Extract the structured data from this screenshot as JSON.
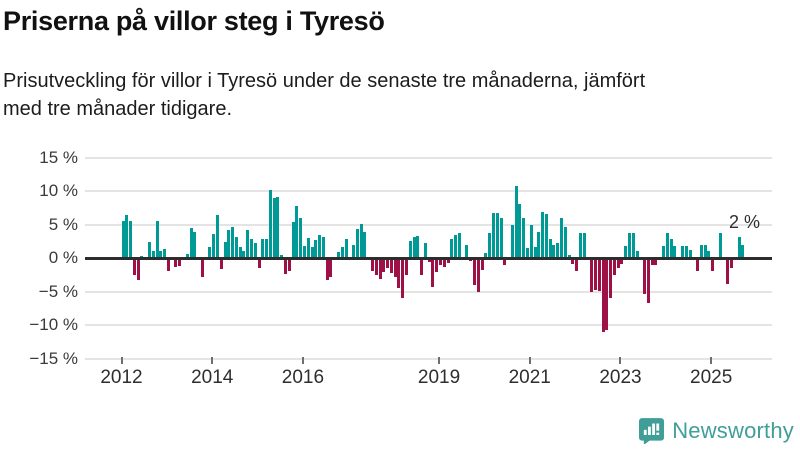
{
  "header": {
    "title": "Priserna på villor steg i Tyresö",
    "subtitle": "Prisutveckling för villor i Tyresö under de senaste tre månaderna, jämfört\nmed tre månader tidigare."
  },
  "chart_data": {
    "type": "bar",
    "unit": "%",
    "frequency": "monthly",
    "x_start": "2012-01",
    "x_end": "2025-09",
    "ylim": [
      -15,
      15
    ],
    "grid": true,
    "legend": false,
    "y_tick_values": [
      15,
      10,
      5,
      0,
      -5,
      -10,
      -15
    ],
    "y_tick_labels": [
      "15 %",
      "10 %",
      "5 %",
      "0 %",
      "−5 %",
      "−10 %",
      "−15 %"
    ],
    "x_tick_years": [
      2012,
      2014,
      2016,
      2019,
      2021,
      2023,
      2025
    ],
    "x_tick_labels": [
      "2012",
      "2014",
      "2016",
      "2019",
      "2021",
      "2023",
      "2025"
    ],
    "values": [
      5.5,
      6.4,
      5.5,
      -2.6,
      -3.3,
      0.3,
      0,
      2.4,
      1.1,
      5.5,
      1.1,
      1.4,
      -1.9,
      0,
      -1.4,
      -1.2,
      0,
      0.6,
      4.5,
      3.9,
      0,
      -2.9,
      0,
      1.6,
      3.6,
      6.4,
      -1.6,
      2.4,
      4.2,
      4.7,
      3.2,
      1.7,
      1.1,
      4.2,
      2.9,
      2.3,
      -1.5,
      2.8,
      2.8,
      10.1,
      8.9,
      9.1,
      0.4,
      -2.4,
      -1.9,
      5.4,
      7.8,
      6.0,
      1.8,
      3.0,
      1.7,
      2.7,
      3.4,
      3.2,
      -3.3,
      -2.9,
      0,
      0.9,
      1.7,
      2.9,
      0,
      1.9,
      4.4,
      5.1,
      3.9,
      0,
      -1.9,
      -2.5,
      -3.1,
      -2.1,
      -1.5,
      -2.3,
      -2.9,
      -4.5,
      -6.0,
      -2.6,
      2.5,
      3.2,
      3.3,
      -2.6,
      2.3,
      -0.6,
      -4.4,
      -2.1,
      -1.0,
      -1.3,
      -0.8,
      2.9,
      3.4,
      3.8,
      0,
      2.0,
      -0.5,
      -4.0,
      -5.1,
      -1.8,
      0.7,
      3.7,
      6.7,
      6.7,
      6.0,
      -1.0,
      0,
      5.0,
      10.8,
      8.0,
      5.9,
      1.5,
      4.9,
      1.7,
      3.9,
      6.8,
      6.6,
      2.9,
      1.9,
      2.2,
      6.0,
      4.7,
      0.5,
      -0.9,
      -2.0,
      3.8,
      3.7,
      0,
      -5.0,
      -4.8,
      -4.9,
      -11.0,
      -10.7,
      -6.0,
      -2.5,
      -1.5,
      -0.9,
      1.8,
      3.8,
      3.8,
      1.0,
      0,
      -5.3,
      -6.7,
      -1.1,
      -1.1,
      0,
      1.8,
      3.8,
      2.9,
      1.8,
      0,
      1.8,
      1.8,
      1.2,
      0,
      -2.0,
      1.9,
      1.9,
      1.1,
      -1.9,
      0,
      3.8,
      0,
      -3.9,
      -1.5,
      0,
      3.2,
      2.0
    ],
    "annotation": {
      "label": "2 %",
      "value": 2
    },
    "colors": {
      "positive": "#009a96",
      "negative": "#9e1146"
    }
  },
  "footer": {
    "brand": "Newsworthy",
    "brand_color": "#3f9e98",
    "logo_icon": "bar-chart-speech-bubble-icon"
  }
}
